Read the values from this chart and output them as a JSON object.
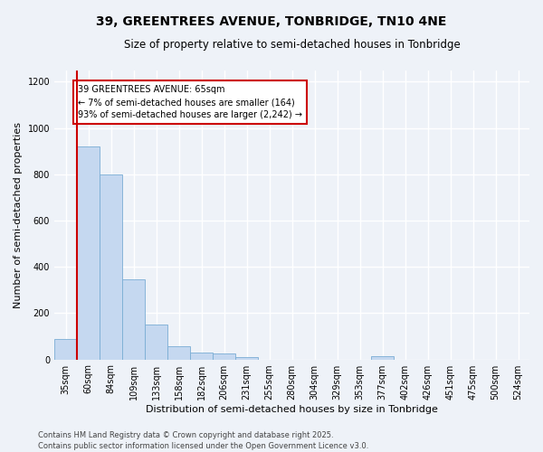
{
  "title_line1": "39, GREENTREES AVENUE, TONBRIDGE, TN10 4NE",
  "title_line2": "Size of property relative to semi-detached houses in Tonbridge",
  "xlabel": "Distribution of semi-detached houses by size in Tonbridge",
  "ylabel": "Number of semi-detached properties",
  "categories": [
    "35sqm",
    "60sqm",
    "84sqm",
    "109sqm",
    "133sqm",
    "158sqm",
    "182sqm",
    "206sqm",
    "231sqm",
    "255sqm",
    "280sqm",
    "304sqm",
    "329sqm",
    "353sqm",
    "377sqm",
    "402sqm",
    "426sqm",
    "451sqm",
    "475sqm",
    "500sqm",
    "524sqm"
  ],
  "values": [
    90,
    920,
    800,
    345,
    150,
    55,
    30,
    25,
    10,
    0,
    0,
    0,
    0,
    0,
    15,
    0,
    0,
    0,
    0,
    0,
    0
  ],
  "bar_color": "#c5d8f0",
  "bar_edge_color": "#7aadd4",
  "highlight_color": "#cc0000",
  "red_line_x": 1.5,
  "annotation_text": "39 GREENTREES AVENUE: 65sqm\n← 7% of semi-detached houses are smaller (164)\n93% of semi-detached houses are larger (2,242) →",
  "annotation_box_facecolor": "#ffffff",
  "annotation_box_edgecolor": "#cc0000",
  "ylim": [
    0,
    1250
  ],
  "yticks": [
    0,
    200,
    400,
    600,
    800,
    1000,
    1200
  ],
  "bg_color": "#eef2f8",
  "grid_color": "#ffffff",
  "title_fontsize": 10,
  "subtitle_fontsize": 8.5,
  "axis_label_fontsize": 8,
  "tick_fontsize": 7,
  "annotation_fontsize": 7,
  "footer_fontsize": 6,
  "footer_line1": "Contains HM Land Registry data © Crown copyright and database right 2025.",
  "footer_line2": "Contains public sector information licensed under the Open Government Licence v3.0."
}
